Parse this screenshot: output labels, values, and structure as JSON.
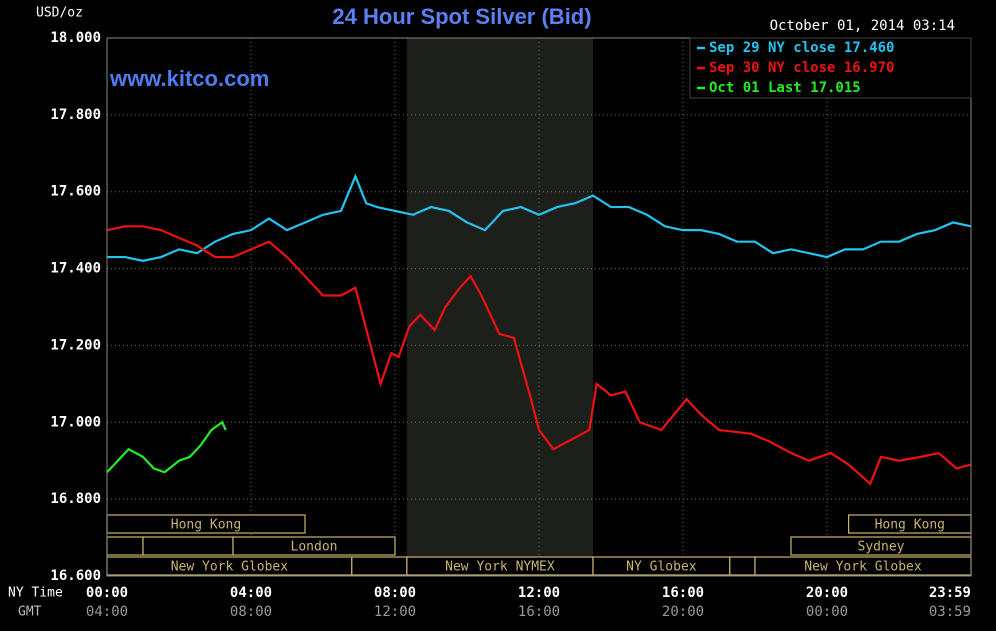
{
  "chart_data": {
    "type": "line",
    "title": "24 Hour Spot Silver (Bid)",
    "y_label": "USD/oz",
    "date": "October 01, 2014 03:14",
    "watermark": "www.kitco.com",
    "x_label_top": "NY Time",
    "x_label_bottom": "GMT",
    "xlim": [
      0,
      24
    ],
    "ylim": [
      16.6,
      18.0
    ],
    "yticks": [
      {
        "value": 16.6,
        "label": "16.600"
      },
      {
        "value": 16.8,
        "label": "16.800"
      },
      {
        "value": 17.0,
        "label": "17.000"
      },
      {
        "value": 17.2,
        "label": "17.200"
      },
      {
        "value": 17.4,
        "label": "17.400"
      },
      {
        "value": 17.6,
        "label": "17.600"
      },
      {
        "value": 17.8,
        "label": "17.800"
      },
      {
        "value": 18.0,
        "label": "18.000"
      }
    ],
    "xticks": [
      {
        "value": 0,
        "label": "00:00"
      },
      {
        "value": 4,
        "label": "04:00"
      },
      {
        "value": 8,
        "label": "08:00"
      },
      {
        "value": 12,
        "label": "12:00"
      },
      {
        "value": 16,
        "label": "16:00"
      },
      {
        "value": 20,
        "label": "20:00"
      },
      {
        "value": 24,
        "label": "23:59"
      }
    ],
    "xticks_gmt": [
      {
        "value": 0,
        "label": "04:00"
      },
      {
        "value": 4,
        "label": "08:00"
      },
      {
        "value": 8,
        "label": "12:00"
      },
      {
        "value": 12,
        "label": "16:00"
      },
      {
        "value": 16,
        "label": "20:00"
      },
      {
        "value": 20,
        "label": "00:00"
      },
      {
        "value": 24,
        "label": "03:59"
      }
    ],
    "grid": true,
    "highlight": [
      8.33,
      13.5
    ],
    "highlight_color": "#1c1f1a",
    "sessions_rows": [
      [
        {
          "start": 0,
          "end": 5.5,
          "label": "Hong Kong"
        },
        {
          "start": 20.6,
          "end": 24,
          "label": "Hong Kong"
        }
      ],
      [
        {
          "start": 0,
          "end": 1
        },
        {
          "start": 1,
          "end": 3.5
        },
        {
          "start": 3.5,
          "end": 8,
          "label": "London"
        },
        {
          "start": 19,
          "end": 24,
          "label": "Sydney"
        }
      ],
      [
        {
          "start": 0,
          "end": 6.8,
          "label": "New York Globex"
        },
        {
          "start": 6.8,
          "end": 8.33
        },
        {
          "start": 8.33,
          "end": 13.5,
          "label": "New York NYMEX"
        },
        {
          "start": 13.5,
          "end": 17.3,
          "label": "NY Globex"
        },
        {
          "start": 17.3,
          "end": 18
        },
        {
          "start": 18,
          "end": 24,
          "label": "New York Globex"
        }
      ]
    ],
    "series": [
      {
        "name": "Sep 29 NY close 17.460",
        "color": "#22c4f0",
        "x": [
          0,
          0.5,
          1,
          1.5,
          2,
          2.5,
          3,
          3.5,
          4,
          4.5,
          5,
          5.5,
          6,
          6.5,
          6.9,
          7.2,
          7.5,
          8,
          8.5,
          9,
          9.5,
          10,
          10.5,
          11,
          11.5,
          12,
          12.5,
          13,
          13.5,
          14,
          14.5,
          15,
          15.5,
          16,
          16.5,
          17,
          17.5,
          18,
          18.5,
          19,
          19.5,
          20,
          20.5,
          21,
          21.5,
          22,
          22.5,
          23,
          23.5,
          24
        ],
        "values": [
          17.43,
          17.43,
          17.42,
          17.43,
          17.45,
          17.44,
          17.47,
          17.49,
          17.5,
          17.53,
          17.5,
          17.52,
          17.54,
          17.55,
          17.64,
          17.57,
          17.56,
          17.55,
          17.54,
          17.56,
          17.55,
          17.52,
          17.5,
          17.55,
          17.56,
          17.54,
          17.56,
          17.57,
          17.59,
          17.56,
          17.56,
          17.54,
          17.51,
          17.5,
          17.5,
          17.49,
          17.47,
          17.47,
          17.44,
          17.45,
          17.44,
          17.43,
          17.45,
          17.45,
          17.47,
          17.47,
          17.49,
          17.5,
          17.52,
          17.51
        ]
      },
      {
        "name": "Sep 30 NY close 16.970",
        "color": "#ee1111",
        "x": [
          0,
          0.5,
          1,
          1.5,
          2,
          2.5,
          3,
          3.5,
          4,
          4.5,
          5,
          5.5,
          6,
          6.5,
          6.9,
          7.6,
          7.9,
          8.1,
          8.4,
          8.7,
          9.1,
          9.4,
          9.8,
          10.1,
          10.4,
          10.9,
          11.3,
          11.75,
          12,
          12.4,
          13,
          13.4,
          13.6,
          14,
          14.4,
          14.8,
          15.4,
          16.1,
          16.5,
          17,
          17.9,
          18.4,
          19,
          19.5,
          20.1,
          20.6,
          21.2,
          21.5,
          22,
          22.6,
          23.1,
          23.6,
          24
        ],
        "values": [
          17.5,
          17.51,
          17.51,
          17.5,
          17.48,
          17.46,
          17.43,
          17.43,
          17.45,
          17.47,
          17.43,
          17.38,
          17.33,
          17.33,
          17.35,
          17.1,
          17.18,
          17.17,
          17.25,
          17.28,
          17.24,
          17.3,
          17.35,
          17.38,
          17.33,
          17.23,
          17.22,
          17.07,
          16.98,
          16.93,
          16.96,
          16.98,
          17.1,
          17.07,
          17.08,
          17.0,
          16.98,
          17.06,
          17.02,
          16.98,
          16.97,
          16.95,
          16.92,
          16.9,
          16.92,
          16.89,
          16.84,
          16.91,
          16.9,
          16.91,
          16.92,
          16.88,
          16.89
        ]
      },
      {
        "name": "Oct 01 Last 17.015",
        "color": "#22ee22",
        "x": [
          0,
          0.3,
          0.6,
          1,
          1.3,
          1.6,
          2,
          2.3,
          2.6,
          2.9,
          3.2,
          3.3
        ],
        "values": [
          16.87,
          16.9,
          16.93,
          16.91,
          16.88,
          16.87,
          16.9,
          16.91,
          16.94,
          16.98,
          17.0,
          16.98
        ]
      }
    ]
  }
}
